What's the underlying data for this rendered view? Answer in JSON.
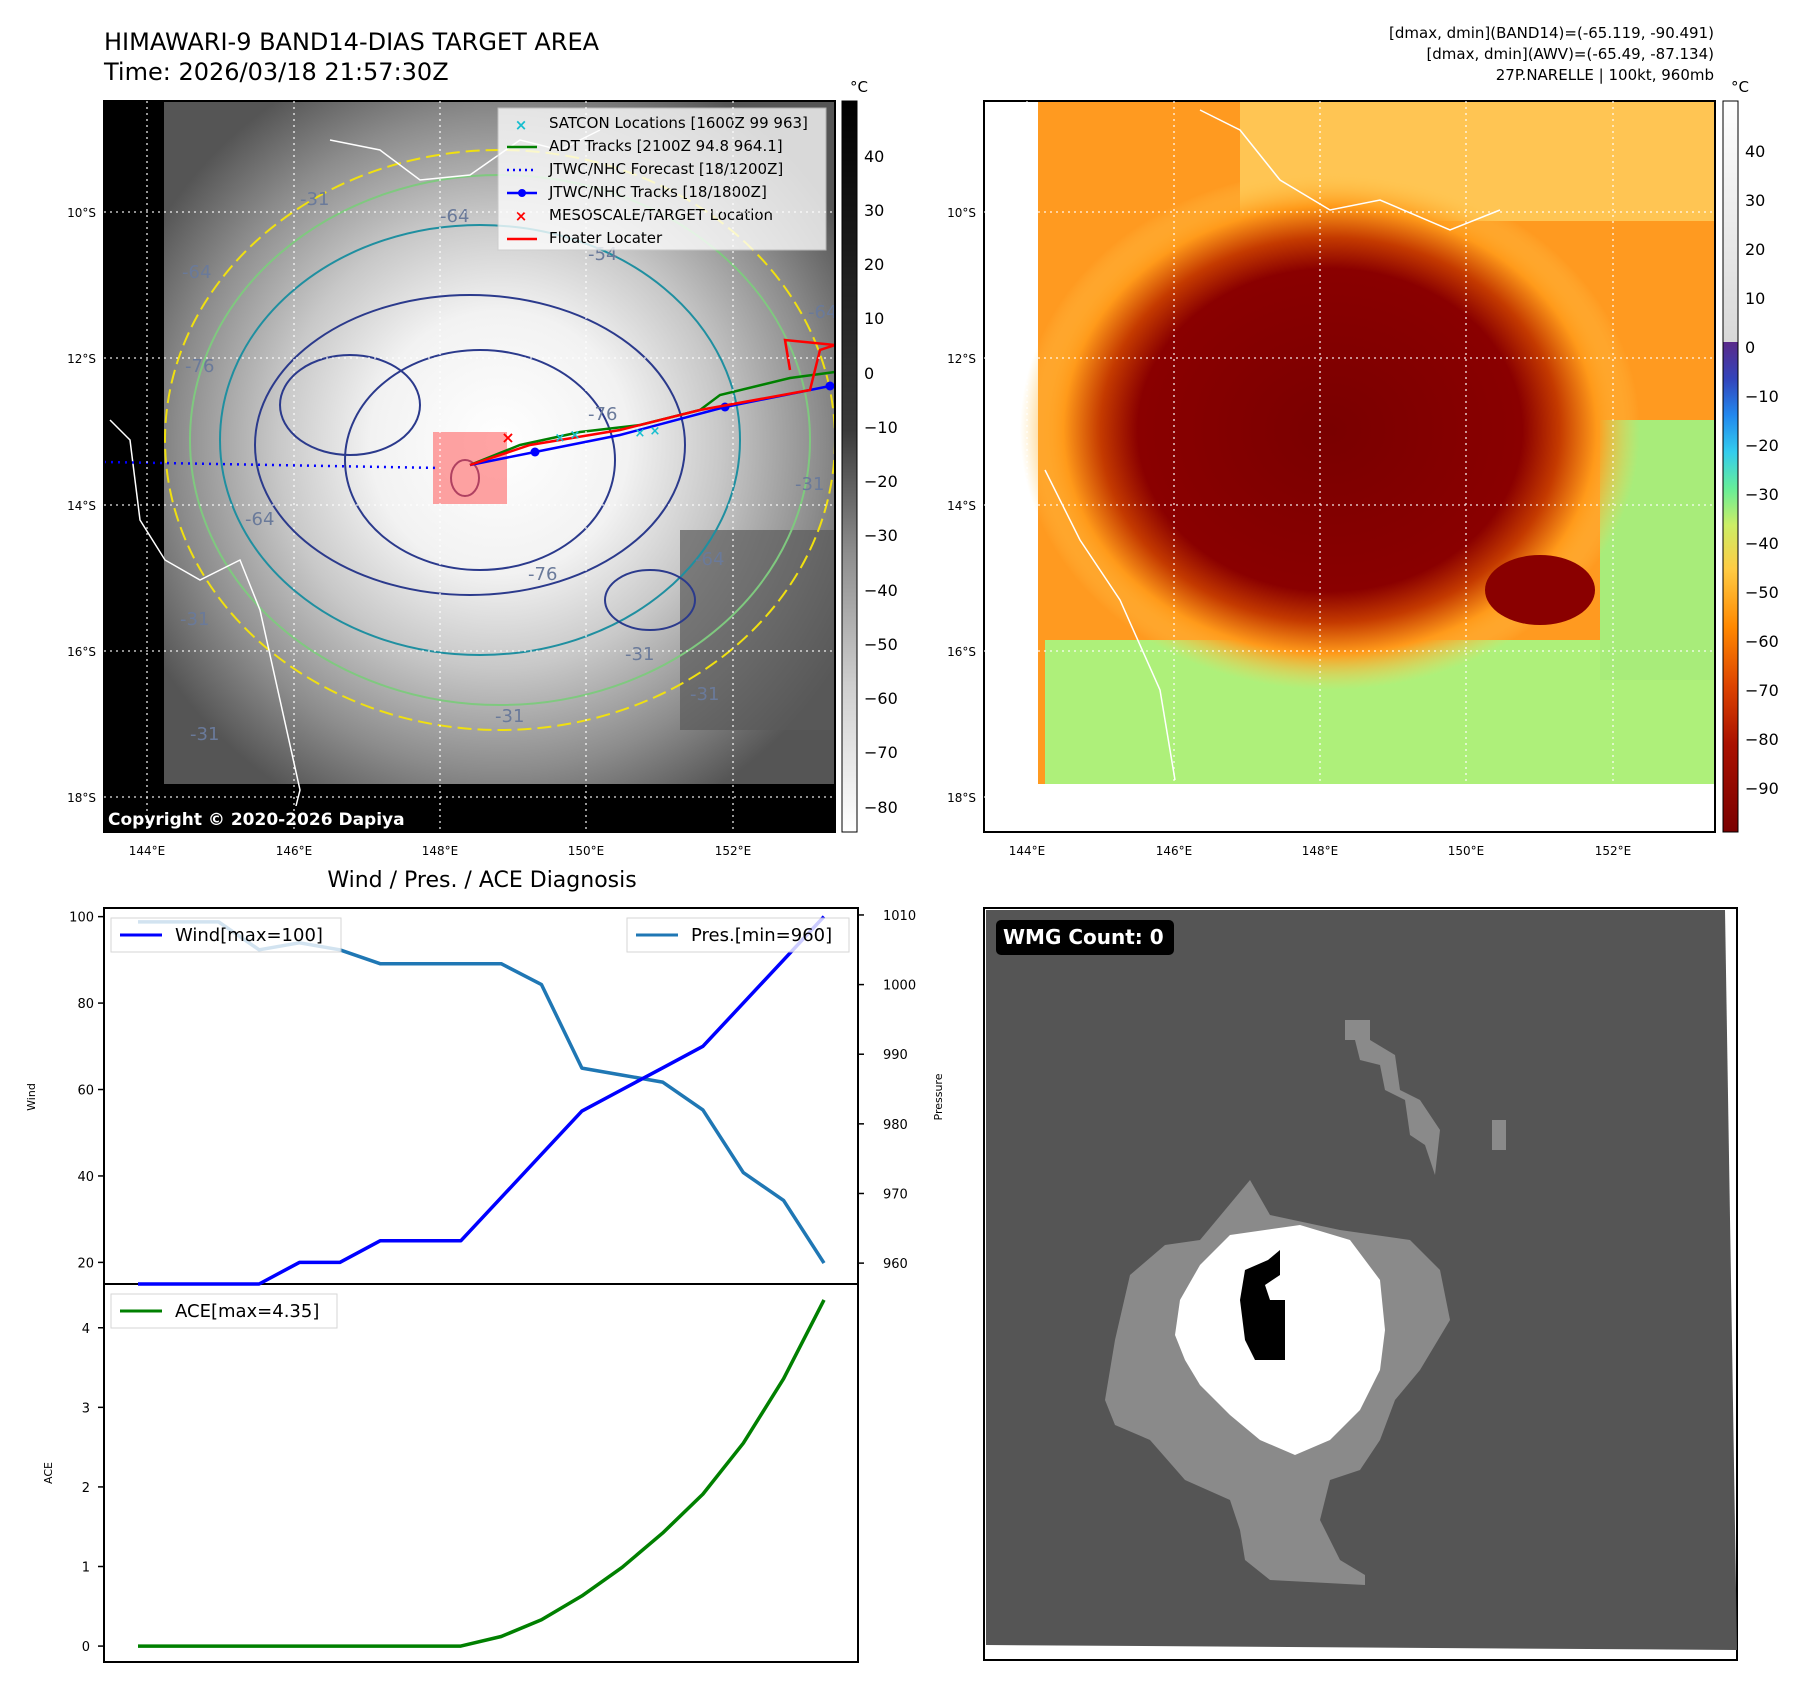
{
  "header": {
    "title_line1": "HIMAWARI-9 BAND14-DIAS TARGET AREA",
    "title_line2": "Time: 2026/03/18 21:57:30Z",
    "stats_line1": "[dmax, dmin](BAND14)=(-65.119, -90.491)",
    "stats_line2": "[dmax, dmin](AWV)=(-65.49, -87.134)",
    "stats_line3": "27P.NARELLE | 100kt, 960mb"
  },
  "maps": {
    "lat_labels": [
      "10°S",
      "12°S",
      "14°S",
      "16°S",
      "18°S"
    ],
    "lon_labels": [
      "144°E",
      "146°E",
      "148°E",
      "150°E",
      "152°E"
    ],
    "copyright": "Copyright © 2020-2026 Dapiya",
    "contour_labels": [
      "-64",
      "-76",
      "-76",
      "-64",
      "-64",
      "-76",
      "-64",
      "-31",
      "-31",
      "-31",
      "-31",
      "-54",
      "-64",
      "-31",
      "-31",
      "-31"
    ],
    "legend": [
      {
        "label": "SATCON Locations [1600Z 99 963]",
        "marker": "x",
        "color": "#17becf"
      },
      {
        "label": "ADT Tracks [2100Z 94.8 964.1]",
        "marker": "line",
        "color": "#008000"
      },
      {
        "label": "JTWC/NHC Forecast [18/1200Z]",
        "marker": "dotted",
        "color": "#0000ff"
      },
      {
        "label": "JTWC/NHC Tracks [18/1800Z]",
        "marker": "line-dot",
        "color": "#0000ff"
      },
      {
        "label": "MESOSCALE/TARGET Location",
        "marker": "x",
        "color": "#ff0000"
      },
      {
        "label": "Floater Locater",
        "marker": "line",
        "color": "#ff0000"
      }
    ],
    "left_colorbar": {
      "unit": "°C",
      "ticks": [
        "40",
        "30",
        "20",
        "10",
        "0",
        "−10",
        "−20",
        "−30",
        "−40",
        "−50",
        "−60",
        "−70",
        "−80"
      ]
    },
    "right_colorbar": {
      "unit": "°C",
      "ticks": [
        "40",
        "30",
        "20",
        "10",
        "0",
        "−10",
        "−20",
        "−30",
        "−40",
        "−50",
        "−60",
        "−70",
        "−80",
        "−90"
      ]
    }
  },
  "diagnosis": {
    "title": "Wind / Pres. / ACE Diagnosis",
    "wind_axis_label": "Wind",
    "pressure_axis_label": "Pressure",
    "ace_axis_label": "ACE"
  },
  "wmg": {
    "label": "WMG Count: 0"
  },
  "chart_data": [
    {
      "type": "line",
      "title": "Wind / Pres. / ACE Diagnosis",
      "x_index": [
        0,
        1,
        2,
        3,
        4,
        5,
        6,
        7,
        8,
        9,
        10,
        11,
        12,
        13,
        14,
        15,
        16,
        17
      ],
      "ylabel": "Wind",
      "ylim": [
        15,
        102
      ],
      "yticks": [
        "20",
        "40",
        "60",
        "80",
        "100"
      ],
      "y2label": "Pressure",
      "y2lim": [
        957,
        1011
      ],
      "y2ticks": [
        "960",
        "970",
        "980",
        "990",
        "1000",
        "1010"
      ],
      "series": [
        {
          "name": "Wind",
          "legend": "Wind[max=100]",
          "color": "#0000ff",
          "axis": "left",
          "values": [
            15,
            15,
            15,
            15,
            20,
            20,
            25,
            25,
            25,
            35,
            45,
            55,
            60,
            65,
            70,
            80,
            90,
            100
          ]
        },
        {
          "name": "Pres.",
          "legend": "Pres.[min=960]",
          "color": "#1f77b4",
          "axis": "right",
          "values": [
            1009,
            1009,
            1009,
            1005,
            1006,
            1005,
            1003,
            1003,
            1003,
            1003,
            1000,
            988,
            987,
            986,
            982,
            973,
            969,
            960
          ]
        }
      ]
    },
    {
      "type": "line",
      "ylabel": "ACE",
      "ylim": [
        -0.2,
        4.55
      ],
      "yticks": [
        "0",
        "1",
        "2",
        "3",
        "4"
      ],
      "x_index": [
        0,
        1,
        2,
        3,
        4,
        5,
        6,
        7,
        8,
        9,
        10,
        11,
        12,
        13,
        14,
        15,
        16,
        17
      ],
      "series": [
        {
          "name": "ACE",
          "legend": "ACE[max=4.35]",
          "color": "#008000",
          "values": [
            0,
            0,
            0,
            0,
            0,
            0,
            0,
            0,
            0,
            0.12,
            0.33,
            0.63,
            0.99,
            1.42,
            1.91,
            2.55,
            3.36,
            4.35
          ]
        }
      ]
    }
  ]
}
